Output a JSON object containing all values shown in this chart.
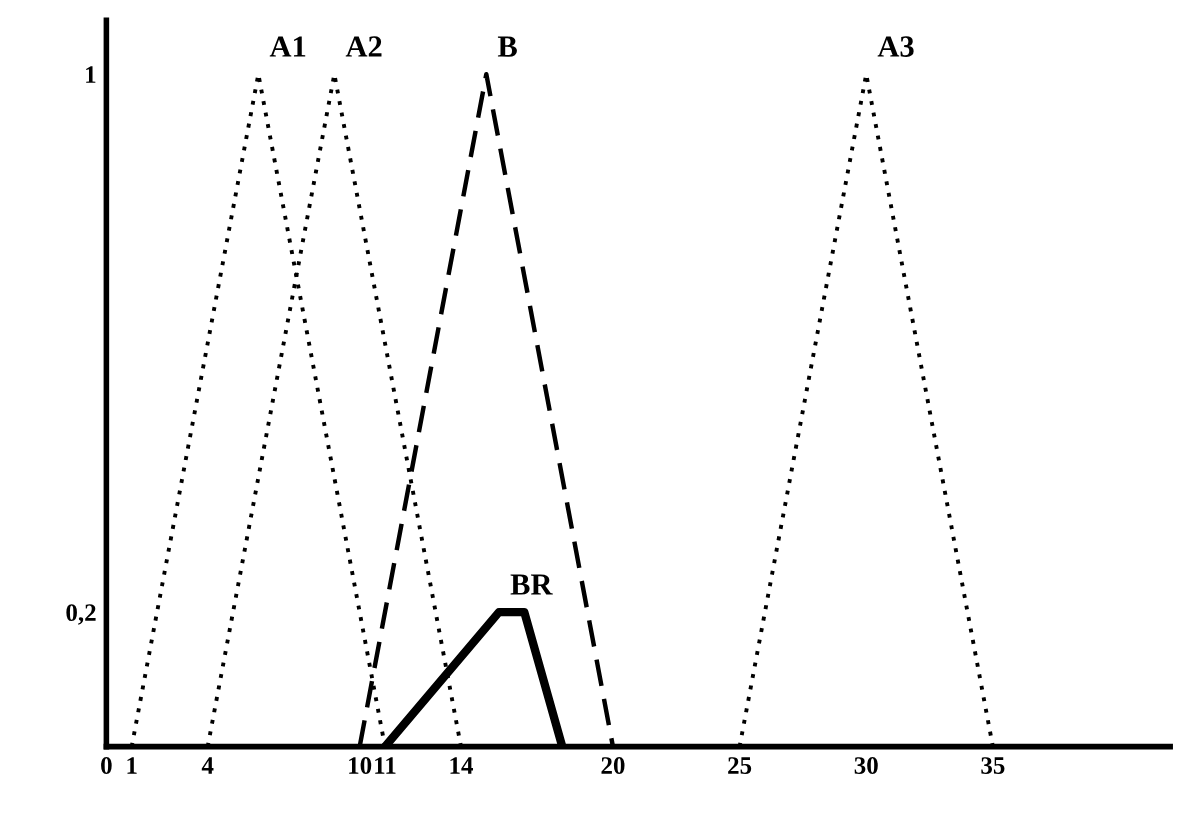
{
  "chart_data": {
    "type": "line",
    "series": [
      {
        "name": "A1",
        "color": "#000000",
        "line_style": "dotted",
        "x": [
          1,
          6,
          11
        ],
        "values": [
          0,
          1,
          0
        ]
      },
      {
        "name": "A2",
        "color": "#000000",
        "line_style": "dotted",
        "x": [
          4,
          9,
          14
        ],
        "values": [
          0,
          1,
          0
        ]
      },
      {
        "name": "B",
        "color": "#000000",
        "line_style": "dashed",
        "x": [
          10,
          15,
          20
        ],
        "values": [
          0,
          1,
          0
        ]
      },
      {
        "name": "A3",
        "color": "#000000",
        "line_style": "dotted",
        "x": [
          25,
          30,
          35
        ],
        "values": [
          0,
          1,
          0
        ]
      },
      {
        "name": "BR",
        "color": "#000000",
        "line_style": "solid",
        "x": [
          11,
          15.5,
          16.5,
          18
        ],
        "values": [
          0,
          0.2,
          0.2,
          0
        ]
      }
    ],
    "xlim": [
      0,
      42
    ],
    "xticks": [
      0,
      1,
      4,
      10,
      11,
      14,
      20,
      25,
      30,
      35
    ],
    "ylim": [
      0,
      1.08
    ],
    "yticks": [
      {
        "value": 0.2,
        "label": "0,2"
      },
      1
    ],
    "grid": false,
    "legend": false,
    "marker": "none"
  }
}
